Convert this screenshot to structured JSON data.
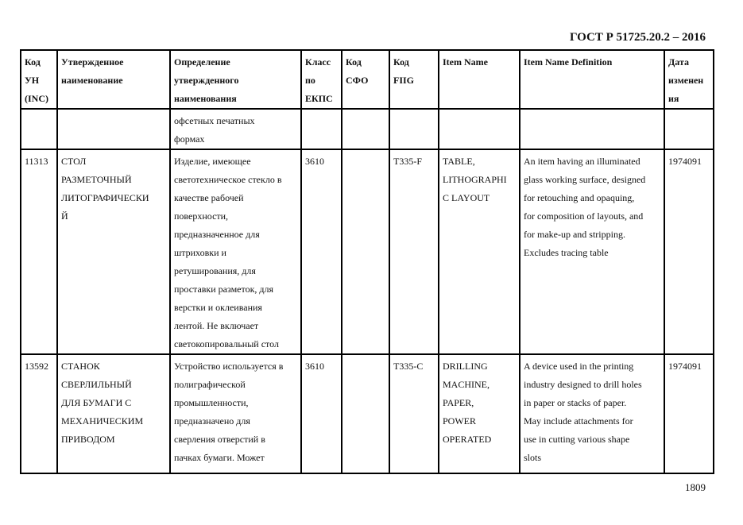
{
  "document": {
    "title": "ГОСТ Р 51725.20.2 – 2016",
    "page_number": "1809"
  },
  "table": {
    "headers": [
      "Код\nУН\n(INC)",
      "Утвержденное\nнаименование",
      "Определение\nутвержденного\nнаименования",
      "Класс\nпо\nЕКПС",
      "Код\nСФО",
      "Код\nFIIG",
      "Item Name",
      "Item Name Definition",
      "Дата\nизменен\nия"
    ],
    "rows": [
      [
        "",
        "",
        "офсетных печатных\nформах",
        "",
        "",
        "",
        "",
        "",
        ""
      ],
      [
        "11313",
        "СТОЛ\nРАЗМЕТОЧНЫЙ\nЛИТОГРАФИЧЕСКИ\nЙ",
        "Изделие, имеющее\nсветотехническое стекло в\nкачестве рабочей\nповерхности,\nпредназначенное для\nштриховки и\nретуширования, для\nпроставки разметок, для\nверстки и оклеивания\nлентой. Не включает\nсветокопировальный стол",
        "3610",
        "",
        "T335-F",
        "TABLE,\nLITHOGRAPHI\nC LAYOUT",
        "An item having an illuminated\nglass working surface, designed\nfor retouching and opaquing,\nfor composition of layouts, and\nfor make-up and stripping.\nExcludes tracing table",
        "1974091"
      ],
      [
        "13592",
        "СТАНОК\nСВЕРЛИЛЬНЫЙ\nДЛЯ БУМАГИ С\nМЕХАНИЧЕСКИМ\nПРИВОДОМ",
        "Устройство используется в\nполиграфической\nпромышленности,\nпредназначено для\nсверления отверстий в\nпачках бумаги. Может",
        "3610",
        "",
        "T335-C",
        "DRILLING\nMACHINE,\nPAPER,\nPOWER\nOPERATED",
        "A device used in the printing\nindustry designed to drill holes\nin paper or stacks of paper.\nMay include attachments for\nuse in cutting various shape\nslots",
        "1974091"
      ]
    ]
  }
}
